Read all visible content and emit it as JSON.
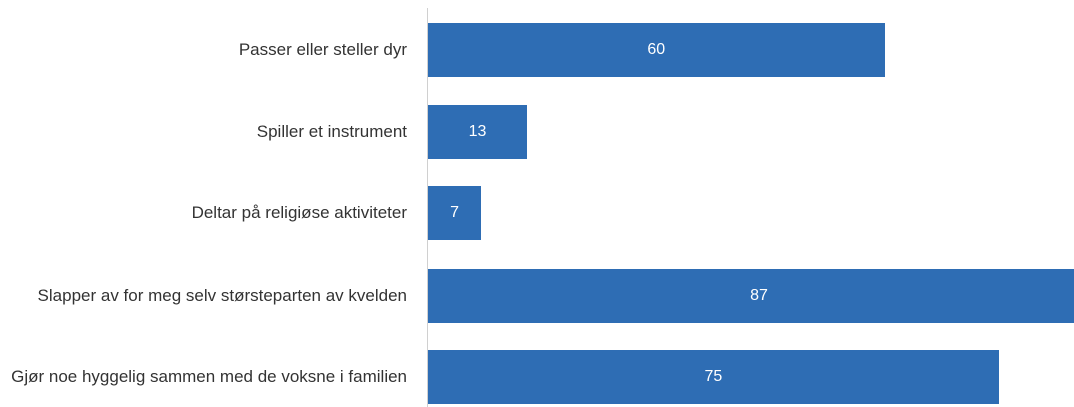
{
  "chart_data": {
    "type": "bar",
    "orientation": "horizontal",
    "categories": [
      "Passer eller steller dyr",
      "Spiller et instrument",
      "Deltar på religiøse aktiviteter",
      "Slapper av for meg selv størsteparten av kvelden",
      "Gjør noe hyggelig sammen med de voksne i familien"
    ],
    "values": [
      60,
      13,
      7,
      87,
      75
    ],
    "color": "#2e6db4"
  }
}
